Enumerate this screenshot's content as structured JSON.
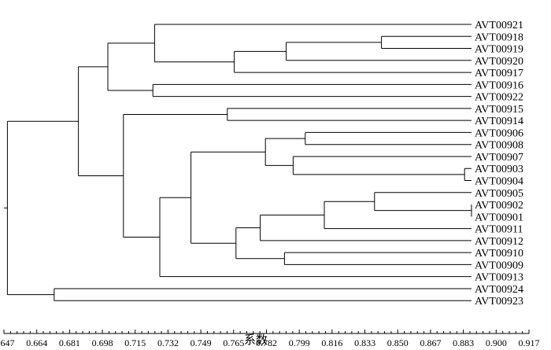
{
  "figure": {
    "axis_title": "系数",
    "x_ticks": [
      "0.647",
      "0.664",
      "0.681",
      "0.698",
      "0.715",
      "0.732",
      "0.749",
      "0.765",
      "0.782",
      "0.799",
      "0.816",
      "0.833",
      "0.850",
      "0.867",
      "0.883",
      "0.900",
      "0.917"
    ],
    "x_range": [
      0.647,
      0.917
    ],
    "leaves": [
      "AVT00921",
      "AVT00918",
      "AVT00919",
      "AVT00920",
      "AVT00917",
      "AVT00916",
      "AVT00922",
      "AVT00915",
      "AVT00914",
      "AVT00906",
      "AVT00908",
      "AVT00907",
      "AVT00903",
      "AVT00904",
      "AVT00905",
      "AVT00902",
      "AVT00901",
      "AVT00911",
      "AVT00912",
      "AVT00910",
      "AVT00909",
      "AVT00913",
      "AVT00924",
      "AVT00923"
    ],
    "merges": [
      {
        "id": "c1",
        "children": [
          "AVT00918",
          "AVT00919"
        ],
        "similarity": 0.865
      },
      {
        "id": "c2",
        "children": [
          "c1",
          "AVT00920"
        ],
        "similarity": 0.81
      },
      {
        "id": "c3",
        "children": [
          "c2",
          "AVT00917"
        ],
        "similarity": 0.78
      },
      {
        "id": "c4",
        "children": [
          "AVT00921",
          "c3"
        ],
        "similarity": 0.734
      },
      {
        "id": "c5",
        "children": [
          "AVT00916",
          "AVT00922"
        ],
        "similarity": 0.733
      },
      {
        "id": "c6",
        "children": [
          "c4",
          "c5"
        ],
        "similarity": 0.707
      },
      {
        "id": "c7",
        "children": [
          "AVT00915",
          "AVT00914"
        ],
        "similarity": 0.776
      },
      {
        "id": "c8",
        "children": [
          "AVT00906",
          "AVT00908"
        ],
        "similarity": 0.821
      },
      {
        "id": "c9",
        "children": [
          "AVT00903",
          "AVT00904"
        ],
        "similarity": 0.913
      },
      {
        "id": "c10",
        "children": [
          "AVT00907",
          "c9"
        ],
        "similarity": 0.814
      },
      {
        "id": "c11",
        "children": [
          "c8",
          "c10"
        ],
        "similarity": 0.798
      },
      {
        "id": "c12",
        "children": [
          "AVT00902",
          "AVT00901"
        ],
        "similarity": 0.917
      },
      {
        "id": "c13",
        "children": [
          "AVT00905",
          "c12"
        ],
        "similarity": 0.861
      },
      {
        "id": "c14",
        "children": [
          "c13",
          "AVT00911"
        ],
        "similarity": 0.832
      },
      {
        "id": "c15",
        "children": [
          "c14",
          "AVT00912"
        ],
        "similarity": 0.795
      },
      {
        "id": "c16",
        "children": [
          "AVT00910",
          "AVT00909"
        ],
        "similarity": 0.809
      },
      {
        "id": "c17",
        "children": [
          "c15",
          "c16"
        ],
        "similarity": 0.781
      },
      {
        "id": "c18",
        "children": [
          "c11",
          "c17"
        ],
        "similarity": 0.755
      },
      {
        "id": "c19",
        "children": [
          "c18",
          "AVT00913"
        ],
        "similarity": 0.737
      },
      {
        "id": "c20",
        "children": [
          "c7",
          "c19"
        ],
        "similarity": 0.716
      },
      {
        "id": "c21",
        "children": [
          "c6",
          "c20"
        ],
        "similarity": 0.69
      },
      {
        "id": "c22",
        "children": [
          "AVT00924",
          "AVT00923"
        ],
        "similarity": 0.676
      },
      {
        "id": "c23",
        "children": [
          "c21",
          "c22"
        ],
        "similarity": 0.649
      }
    ]
  }
}
